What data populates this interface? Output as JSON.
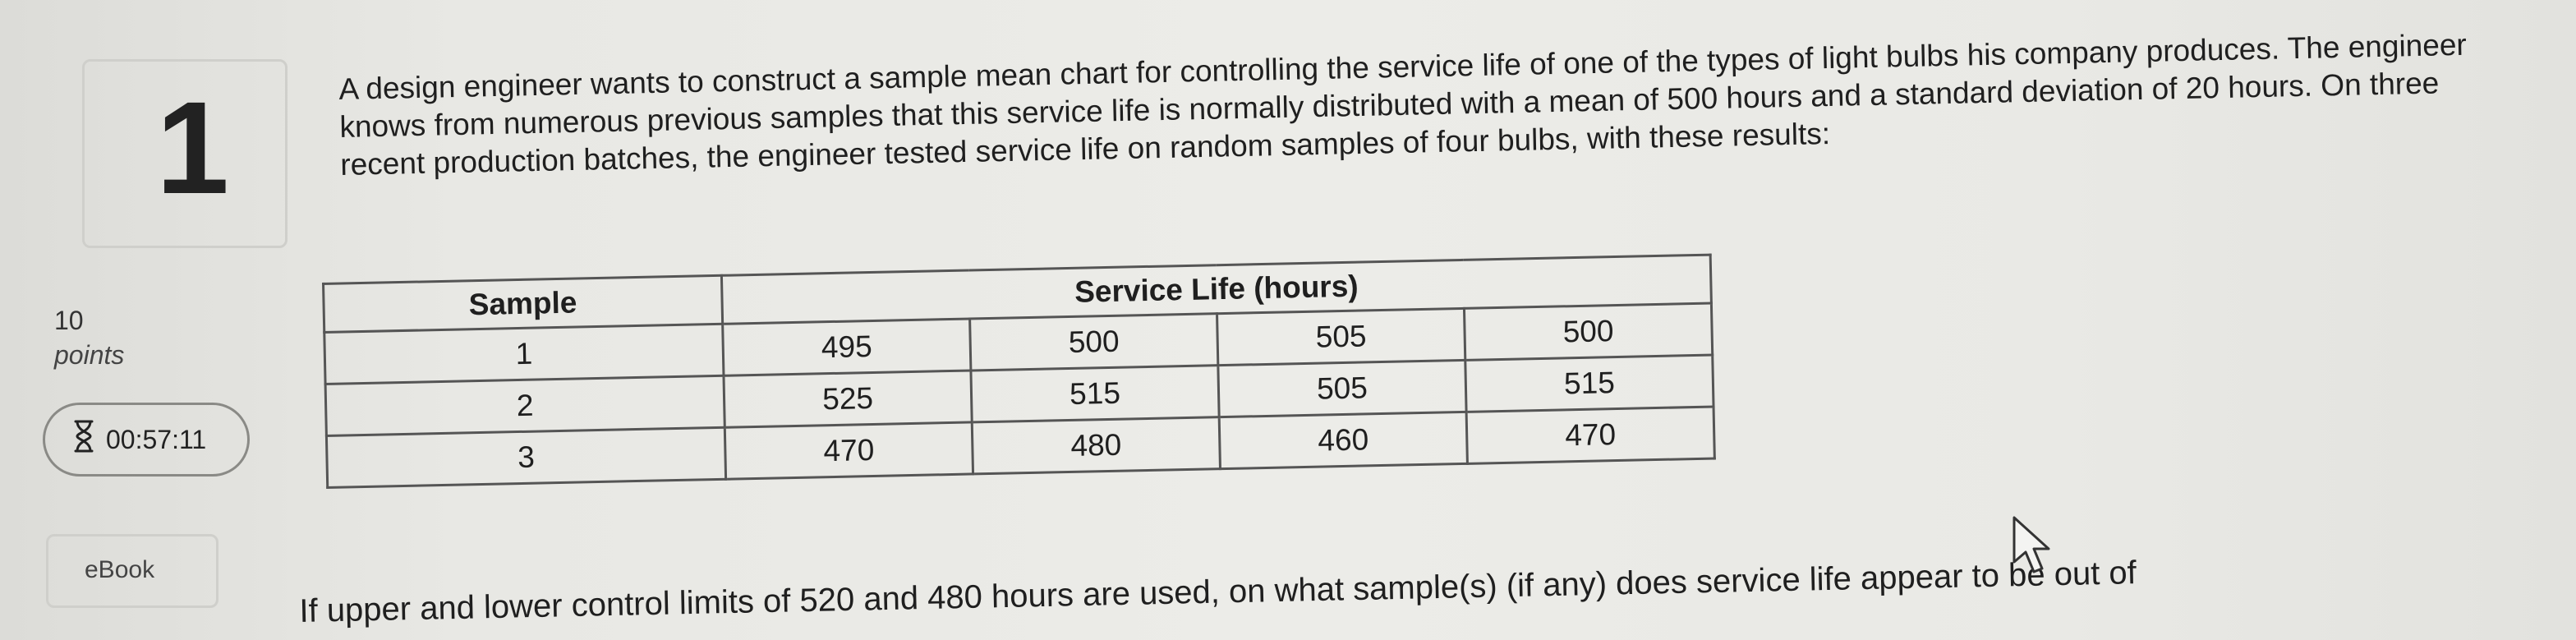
{
  "question": {
    "number": "1",
    "points_value": "10",
    "points_label": "points",
    "timer": "00:57:11",
    "ebook_label": "eBook",
    "text": "A design engineer wants to construct a sample mean chart for controlling the service life of one of the types of light bulbs his company produces. The engineer knows from numerous previous samples that this service life is normally distributed with a mean of 500 hours and a standard deviation of 20 hours. On three recent production batches, the engineer tested service life on random samples of four bulbs, with these results:",
    "followup": "If upper and lower control limits of 520 and 480 hours are used, on what sample(s) (if any) does service life appear to be out of"
  },
  "table": {
    "header_sample": "Sample",
    "header_service": "Service Life (hours)",
    "rows": [
      {
        "sample": "1",
        "values": [
          "495",
          "500",
          "505",
          "500"
        ]
      },
      {
        "sample": "2",
        "values": [
          "525",
          "515",
          "505",
          "515"
        ]
      },
      {
        "sample": "3",
        "values": [
          "470",
          "480",
          "460",
          "470"
        ]
      }
    ]
  },
  "icons": {
    "timer": "hourglass-icon",
    "cursor": "mouse-pointer-icon"
  }
}
